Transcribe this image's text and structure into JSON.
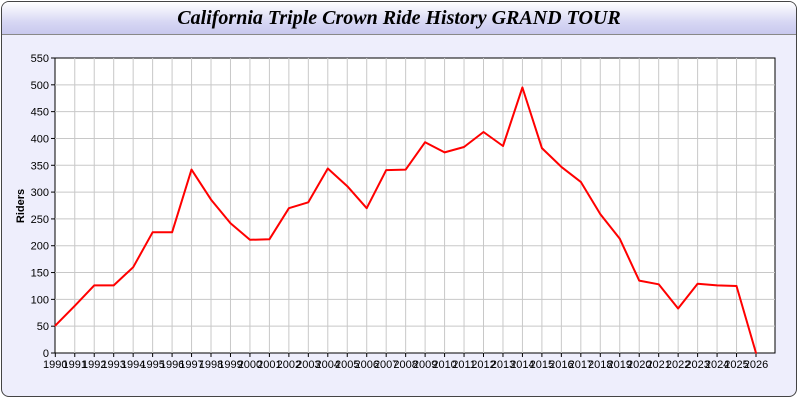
{
  "chart_data": {
    "type": "line",
    "title": "California Triple Crown Ride History GRAND TOUR",
    "xlabel": "",
    "ylabel": "Riders",
    "ylim": [
      0,
      550
    ],
    "yticks": [
      0,
      50,
      100,
      150,
      200,
      250,
      300,
      350,
      400,
      450,
      500,
      550
    ],
    "grid": true,
    "line_color": "#ff0000",
    "x": [
      "1990",
      "1991",
      "1992",
      "1993",
      "1994",
      "1995",
      "1996",
      "1997",
      "1998",
      "1999",
      "2000",
      "2001",
      "2002",
      "2003",
      "2004",
      "2005",
      "2006",
      "2007",
      "2008",
      "2009",
      "2010",
      "2011",
      "2012",
      "2013",
      "2014",
      "2015",
      "2016",
      "2017",
      "2018",
      "2019",
      "2020",
      "2021",
      "2022",
      "2023",
      "2024",
      "2025",
      "2026"
    ],
    "series": [
      {
        "values": [
          51,
          88,
          126,
          126,
          160,
          225,
          225,
          342,
          286,
          242,
          211,
          212,
          270,
          281,
          344,
          311,
          270,
          341,
          342,
          393,
          374,
          384,
          412,
          386,
          495,
          382,
          347,
          319,
          259,
          213,
          135,
          128,
          83,
          129,
          126,
          125,
          0
        ]
      }
    ]
  }
}
